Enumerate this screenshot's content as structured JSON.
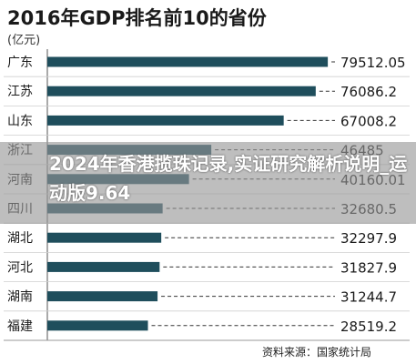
{
  "chart_data": {
    "type": "bar",
    "orientation": "horizontal",
    "title": "2016年GDP排名前10的省份",
    "unit": "(亿元)",
    "categories": [
      "广东",
      "江苏",
      "山东",
      "浙江",
      "河南",
      "四川",
      "湖北",
      "河北",
      "湖南",
      "福建"
    ],
    "values": [
      79512.05,
      76086.2,
      67008.2,
      46485,
      40160.01,
      32680.5,
      32297.9,
      31827.9,
      31244.7,
      28519.2
    ],
    "value_labels": [
      "79512.05",
      "76086.2",
      "67008.2",
      "46485",
      "40160.01",
      "32680.5",
      "32297.9",
      "31827.9",
      "31244.7",
      "28519.2"
    ],
    "xlim": [
      0,
      80000
    ],
    "bar_color": "#1f4e5c",
    "source": "资料来源：国家统计局"
  },
  "overlay": {
    "text": "2024年香港揽珠记录,实证研究解析说明_运动版9.64"
  }
}
